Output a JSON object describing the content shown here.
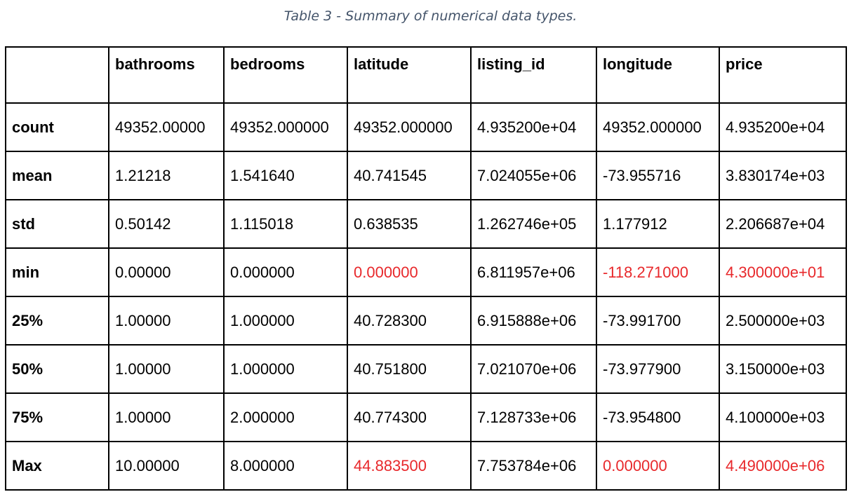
{
  "caption": "Table 3 - Summary of numerical data types.",
  "colors": {
    "caption": "#44546a",
    "flagged_value": "#e8282b",
    "border": "#000000"
  },
  "table": {
    "columns": [
      "",
      "bathrooms",
      "bedrooms",
      "latitude",
      "listing_id",
      "longitude",
      "price"
    ],
    "rows": [
      {
        "label": "count",
        "values": [
          "49352.00000",
          "49352.000000",
          "49352.000000",
          "4.935200e+04",
          "49352.000000",
          "4.935200e+04"
        ],
        "flagged": [
          false,
          false,
          false,
          false,
          false,
          false
        ]
      },
      {
        "label": "mean",
        "values": [
          "1.21218",
          "1.541640",
          "40.741545",
          "7.024055e+06",
          "-73.955716",
          "3.830174e+03"
        ],
        "flagged": [
          false,
          false,
          false,
          false,
          false,
          false
        ]
      },
      {
        "label": "std",
        "values": [
          "0.50142",
          "1.115018",
          "0.638535",
          "1.262746e+05",
          "1.177912",
          "2.206687e+04"
        ],
        "flagged": [
          false,
          false,
          false,
          false,
          false,
          false
        ]
      },
      {
        "label": "min",
        "values": [
          "0.00000",
          "0.000000",
          "0.000000",
          "6.811957e+06",
          "-118.271000",
          "4.300000e+01"
        ],
        "flagged": [
          false,
          false,
          true,
          false,
          true,
          true
        ]
      },
      {
        "label": "25%",
        "values": [
          "1.00000",
          "1.000000",
          "40.728300",
          "6.915888e+06",
          "-73.991700",
          "2.500000e+03"
        ],
        "flagged": [
          false,
          false,
          false,
          false,
          false,
          false
        ]
      },
      {
        "label": "50%",
        "values": [
          "1.00000",
          "1.000000",
          "40.751800",
          "7.021070e+06",
          "-73.977900",
          "3.150000e+03"
        ],
        "flagged": [
          false,
          false,
          false,
          false,
          false,
          false
        ]
      },
      {
        "label": "75%",
        "values": [
          "1.00000",
          "2.000000",
          "40.774300",
          "7.128733e+06",
          "-73.954800",
          "4.100000e+03"
        ],
        "flagged": [
          false,
          false,
          false,
          false,
          false,
          false
        ]
      },
      {
        "label": "Max",
        "values": [
          "10.00000",
          "8.000000",
          "44.883500",
          "7.753784e+06",
          "0.000000",
          "4.490000e+06"
        ],
        "flagged": [
          false,
          false,
          true,
          false,
          true,
          true
        ]
      }
    ]
  }
}
